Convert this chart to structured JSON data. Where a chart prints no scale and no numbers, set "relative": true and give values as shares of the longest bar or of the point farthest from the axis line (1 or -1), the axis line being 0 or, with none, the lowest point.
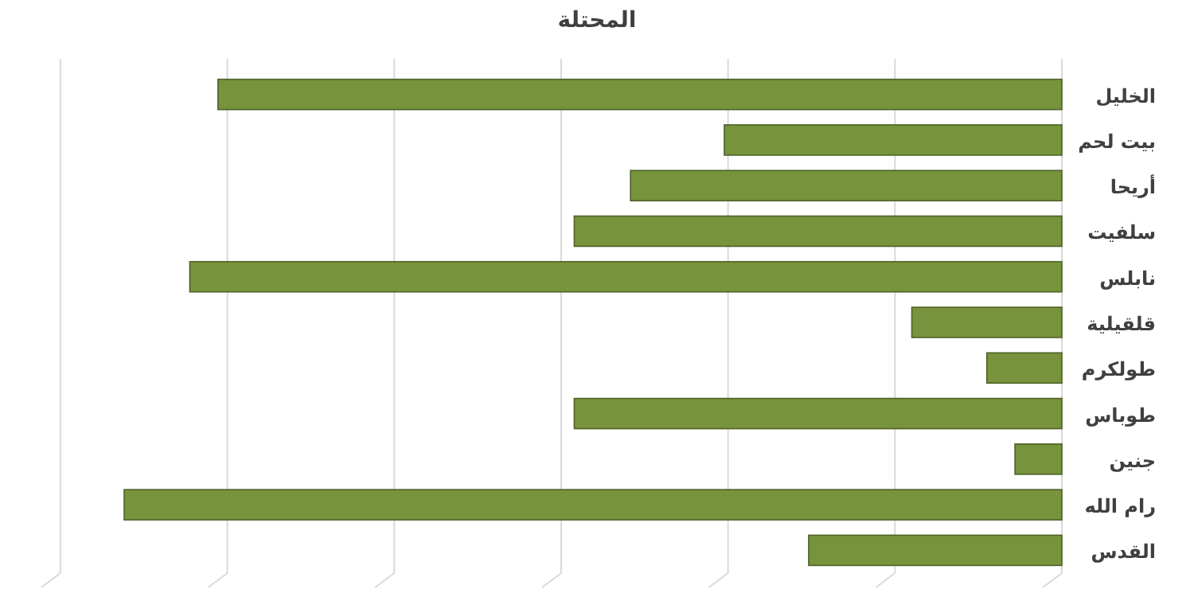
{
  "chart_data": {
    "type": "bar",
    "orientation": "horizontal",
    "relative": true,
    "title": "المحتلة",
    "categories": [
      "الخليل",
      "بيت لحم",
      "أريحا",
      "سلفيت",
      "نابلس",
      "قلقيلية",
      "طولكرم",
      "طوباس",
      "جنين",
      "رام الله",
      "القدس"
    ],
    "values": [
      0.9,
      0.36,
      0.46,
      0.52,
      0.93,
      0.16,
      0.08,
      0.52,
      0.05,
      1.0,
      0.27
    ],
    "color": "#77933c",
    "grid": "x",
    "tick_labels": "y"
  }
}
